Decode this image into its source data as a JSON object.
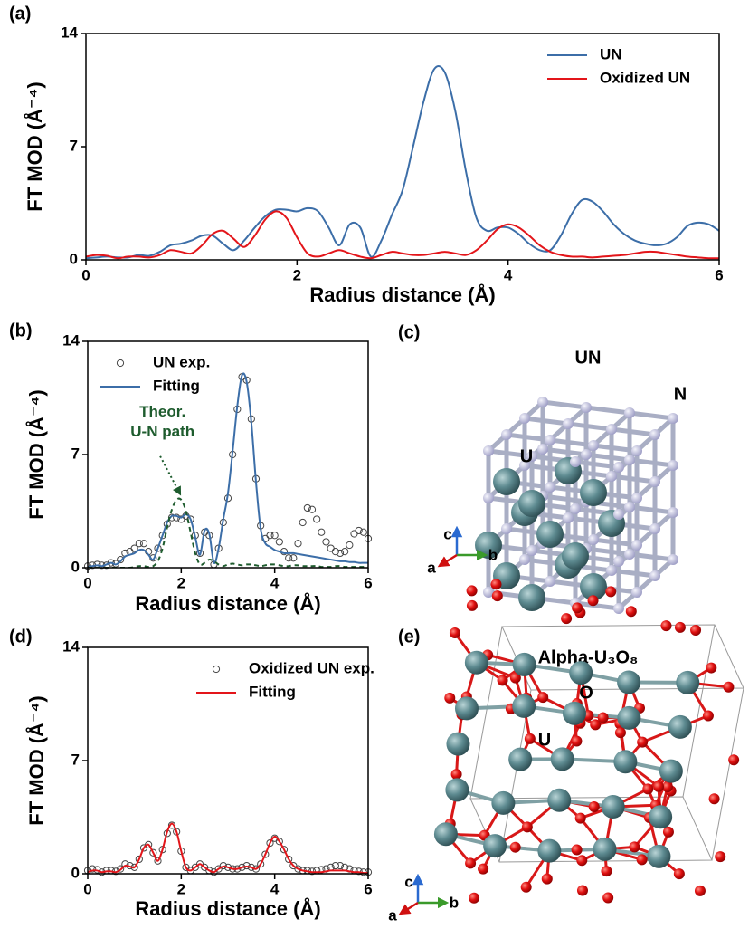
{
  "chart_data": [
    {
      "type": "line",
      "label": "(a)",
      "xlabel": "Radius distance (Å)",
      "ylabel": "FT MOD (Å⁻⁴)",
      "xlim": [
        0,
        6
      ],
      "xticks": [
        0,
        2,
        4,
        6
      ],
      "ylim": [
        0,
        14
      ],
      "yticks": [
        0,
        7,
        14
      ],
      "legend": "upper right",
      "x": [
        0,
        0.1,
        0.2,
        0.3,
        0.4,
        0.5,
        0.6,
        0.7,
        0.8,
        0.9,
        1,
        1.1,
        1.2,
        1.3,
        1.4,
        1.5,
        1.6,
        1.7,
        1.8,
        1.9,
        2,
        2.1,
        2.2,
        2.3,
        2.4,
        2.5,
        2.6,
        2.7,
        2.8,
        2.9,
        3,
        3.1,
        3.2,
        3.3,
        3.4,
        3.5,
        3.6,
        3.7,
        3.8,
        3.9,
        4,
        4.1,
        4.2,
        4.3,
        4.4,
        4.5,
        4.6,
        4.7,
        4.8,
        4.9,
        5,
        5.1,
        5.2,
        5.3,
        5.4,
        5.5,
        5.6,
        5.7,
        5.8,
        5.9,
        6
      ],
      "series": [
        {
          "name": "UN",
          "color": "#3c6ea8",
          "mode": "line",
          "values": [
            0.1,
            0.15,
            0.2,
            0.15,
            0.15,
            0.3,
            0.25,
            0.5,
            0.9,
            1.0,
            1.2,
            1.5,
            1.5,
            1.0,
            0.6,
            1.2,
            2.0,
            2.7,
            3.1,
            3.1,
            3.0,
            3.2,
            3.0,
            2.0,
            0.9,
            2.2,
            2.0,
            0.2,
            1.2,
            2.8,
            4.3,
            7.0,
            9.8,
            11.8,
            11.6,
            9.2,
            5.5,
            2.6,
            1.8,
            2.0,
            2.0,
            1.6,
            1.0,
            0.6,
            0.6,
            1.5,
            2.8,
            3.7,
            3.6,
            3.0,
            2.2,
            1.6,
            1.2,
            1.0,
            0.9,
            1.0,
            1.4,
            2.1,
            2.3,
            2.2,
            1.8
          ]
        },
        {
          "name": "Oxidized UN",
          "color": "#e3151a",
          "mode": "line",
          "values": [
            0.2,
            0.3,
            0.25,
            0.1,
            0.2,
            0.2,
            0.15,
            0.3,
            0.6,
            0.5,
            0.4,
            0.9,
            1.6,
            1.8,
            1.3,
            0.8,
            1.5,
            2.5,
            3.0,
            2.6,
            1.4,
            0.4,
            0.2,
            0.4,
            0.6,
            0.4,
            0.2,
            0.1,
            0.3,
            0.5,
            0.4,
            0.3,
            0.3,
            0.4,
            0.5,
            0.4,
            0.3,
            0.6,
            1.2,
            1.9,
            2.2,
            2.0,
            1.5,
            0.9,
            0.5,
            0.3,
            0.2,
            0.2,
            0.15,
            0.2,
            0.25,
            0.3,
            0.4,
            0.5,
            0.5,
            0.4,
            0.3,
            0.2,
            0.15,
            0.1,
            0.1
          ]
        }
      ]
    },
    {
      "type": "line",
      "label": "(b)",
      "xlabel": "Radius distance (Å)",
      "ylabel": "FT MOD (Å⁻⁴)",
      "xlim": [
        0,
        6
      ],
      "xticks": [
        0,
        2,
        4,
        6
      ],
      "ylim": [
        0,
        14
      ],
      "yticks": [
        0,
        7,
        14
      ],
      "legend": "upper left",
      "annotation": {
        "text": [
          "Theor.",
          "U-N path"
        ],
        "color": "#1e5c2e"
      },
      "x": [
        0,
        0.1,
        0.2,
        0.3,
        0.4,
        0.5,
        0.6,
        0.7,
        0.8,
        0.9,
        1,
        1.1,
        1.2,
        1.3,
        1.4,
        1.5,
        1.6,
        1.7,
        1.8,
        1.9,
        2,
        2.1,
        2.2,
        2.3,
        2.4,
        2.5,
        2.6,
        2.7,
        2.8,
        2.9,
        3,
        3.1,
        3.2,
        3.3,
        3.4,
        3.5,
        3.6,
        3.7,
        3.8,
        3.9,
        4,
        4.1,
        4.2,
        4.3,
        4.4,
        4.5,
        4.6,
        4.7,
        4.8,
        4.9,
        5,
        5.1,
        5.2,
        5.3,
        5.4,
        5.5,
        5.6,
        5.7,
        5.8,
        5.9,
        6
      ],
      "series": [
        {
          "name": "UN exp.",
          "color": "#444444",
          "mode": "markers",
          "values": [
            0.1,
            0.15,
            0.2,
            0.15,
            0.15,
            0.3,
            0.25,
            0.5,
            0.9,
            1.0,
            1.2,
            1.5,
            1.5,
            1.0,
            0.6,
            1.2,
            2.0,
            2.7,
            3.1,
            3.1,
            3.0,
            3.2,
            3.0,
            2.0,
            0.9,
            2.2,
            2.0,
            0.2,
            1.2,
            2.8,
            4.3,
            7.0,
            9.8,
            11.8,
            11.6,
            9.2,
            5.5,
            2.6,
            1.8,
            2.0,
            2.0,
            1.6,
            1.0,
            0.6,
            0.6,
            1.5,
            2.8,
            3.7,
            3.6,
            3.0,
            2.2,
            1.6,
            1.2,
            1.0,
            0.9,
            1.0,
            1.4,
            2.1,
            2.3,
            2.2,
            1.8
          ]
        },
        {
          "name": "Fitting",
          "color": "#3c6ea8",
          "mode": "line",
          "values": [
            0.05,
            0.1,
            0.15,
            0.1,
            0.2,
            0.3,
            0.2,
            0.4,
            0.7,
            0.8,
            0.9,
            1.1,
            1.1,
            0.8,
            0.5,
            1.2,
            2.0,
            2.8,
            3.2,
            3.2,
            3.1,
            3.3,
            3.0,
            1.9,
            0.8,
            2.3,
            2.1,
            0.3,
            1.2,
            3.0,
            4.6,
            7.2,
            10.0,
            11.9,
            11.5,
            9.0,
            5.3,
            2.4,
            1.5,
            1.3,
            1.1,
            1.0,
            0.9,
            0.9,
            0.9,
            0.85,
            0.8,
            0.75,
            0.7,
            0.65,
            0.6,
            0.55,
            0.5,
            0.45,
            0.4,
            0.4,
            0.35,
            0.35,
            0.3,
            0.3,
            0.3
          ]
        },
        {
          "color": "#1e5c2e",
          "mode": "dash",
          "values": [
            0,
            0,
            0,
            0,
            0,
            0,
            0,
            0,
            0,
            0,
            0.05,
            0.1,
            0.1,
            0.05,
            0.1,
            0.4,
            1.2,
            2.5,
            3.6,
            4.2,
            4.2,
            3.5,
            2.2,
            0.9,
            0.2,
            0.3,
            0.5,
            0.4,
            0.2,
            0.1,
            0.2,
            0.25,
            0.2,
            0.15,
            0.2,
            0.2,
            0.15,
            0.1,
            0.15,
            0.2,
            0.2,
            0.15,
            0.1,
            0.1,
            0.15,
            0.15,
            0.1,
            0.1,
            0.1,
            0.1,
            0.05,
            0.05,
            0.05,
            0.1,
            0.1,
            0.05,
            0.05,
            0.05,
            0.05,
            0.05,
            0.05
          ]
        }
      ]
    },
    {
      "type": "line",
      "label": "(d)",
      "xlabel": "Radius distance (Å)",
      "ylabel": "FT MOD (Å⁻⁴)",
      "xlim": [
        0,
        6
      ],
      "xticks": [
        0,
        2,
        4,
        6
      ],
      "ylim": [
        0,
        14
      ],
      "yticks": [
        0,
        7,
        14
      ],
      "legend": "upper right",
      "x": [
        0,
        0.1,
        0.2,
        0.3,
        0.4,
        0.5,
        0.6,
        0.7,
        0.8,
        0.9,
        1,
        1.1,
        1.2,
        1.3,
        1.4,
        1.5,
        1.6,
        1.7,
        1.8,
        1.9,
        2,
        2.1,
        2.2,
        2.3,
        2.4,
        2.5,
        2.6,
        2.7,
        2.8,
        2.9,
        3,
        3.1,
        3.2,
        3.3,
        3.4,
        3.5,
        3.6,
        3.7,
        3.8,
        3.9,
        4,
        4.1,
        4.2,
        4.3,
        4.4,
        4.5,
        4.6,
        4.7,
        4.8,
        4.9,
        5,
        5.1,
        5.2,
        5.3,
        5.4,
        5.5,
        5.6,
        5.7,
        5.8,
        5.9,
        6
      ],
      "series": [
        {
          "name": "Oxidized UN exp.",
          "color": "#444444",
          "mode": "markers",
          "values": [
            0.2,
            0.3,
            0.25,
            0.1,
            0.2,
            0.2,
            0.15,
            0.3,
            0.6,
            0.5,
            0.4,
            0.9,
            1.6,
            1.8,
            1.3,
            0.8,
            1.5,
            2.5,
            3.0,
            2.6,
            1.4,
            0.4,
            0.2,
            0.4,
            0.6,
            0.4,
            0.2,
            0.1,
            0.3,
            0.5,
            0.4,
            0.3,
            0.3,
            0.4,
            0.5,
            0.4,
            0.3,
            0.6,
            1.2,
            1.9,
            2.2,
            2.0,
            1.5,
            0.9,
            0.5,
            0.3,
            0.2,
            0.2,
            0.15,
            0.2,
            0.25,
            0.3,
            0.4,
            0.5,
            0.5,
            0.4,
            0.3,
            0.2,
            0.15,
            0.1,
            0.1
          ]
        },
        {
          "name": "Fitting",
          "color": "#e3151a",
          "mode": "line",
          "values": [
            0.1,
            0.2,
            0.2,
            0.1,
            0.15,
            0.15,
            0.1,
            0.25,
            0.5,
            0.45,
            0.4,
            0.9,
            1.6,
            1.8,
            1.3,
            0.8,
            1.5,
            2.6,
            3.1,
            2.6,
            1.4,
            0.4,
            0.2,
            0.4,
            0.6,
            0.4,
            0.2,
            0.1,
            0.3,
            0.45,
            0.4,
            0.3,
            0.3,
            0.4,
            0.45,
            0.4,
            0.3,
            0.6,
            1.2,
            1.9,
            2.3,
            2.0,
            1.5,
            0.9,
            0.5,
            0.3,
            0.2,
            0.15,
            0.1,
            0.1,
            0.1,
            0.15,
            0.2,
            0.2,
            0.2,
            0.2,
            0.15,
            0.1,
            0.1,
            0.05,
            0.05
          ]
        }
      ]
    }
  ],
  "structures": [
    {
      "label": "(c)",
      "title": "UN",
      "labels": [
        "N",
        "U"
      ],
      "axes": [
        "c",
        "b",
        "a"
      ]
    },
    {
      "label": "(e)",
      "title": "Alpha-U₃O₈",
      "labels": [
        "O",
        "U"
      ],
      "axes": [
        "c",
        "b",
        "a"
      ]
    }
  ]
}
